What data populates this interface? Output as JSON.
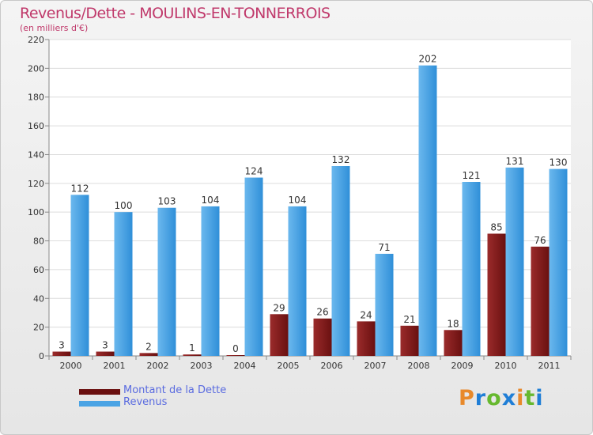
{
  "header": {
    "title": "Revenus/Dette - MOULINS-EN-TONNERROIS",
    "subtitle": "(en milliers d'€)"
  },
  "brand": {
    "name": "Proxiti",
    "colors": [
      "#e8892a",
      "#1f7ed6",
      "#66b82e",
      "#1f7ed6",
      "#e8892a",
      "#66b82e",
      "#1f7ed6"
    ]
  },
  "chart_data": {
    "type": "bar",
    "categories": [
      "2000",
      "2001",
      "2002",
      "2003",
      "2004",
      "2005",
      "2006",
      "2007",
      "2008",
      "2009",
      "2010",
      "2011"
    ],
    "series": [
      {
        "name": "Montant de la Dette",
        "values": [
          3,
          3,
          2,
          1,
          0,
          29,
          26,
          24,
          21,
          18,
          85,
          76
        ],
        "color": "#7a1a1a"
      },
      {
        "name": "Revenus",
        "values": [
          112,
          100,
          103,
          104,
          124,
          104,
          132,
          71,
          202,
          121,
          131,
          130
        ],
        "color": "#4aa3e4"
      }
    ],
    "yticks": [
      "0",
      "20",
      "40",
      "60",
      "80",
      "100",
      "120",
      "140",
      "160",
      "180",
      "200",
      "220"
    ],
    "ylim": [
      0,
      220
    ],
    "grid": true,
    "legend_position": "bottom-left"
  }
}
